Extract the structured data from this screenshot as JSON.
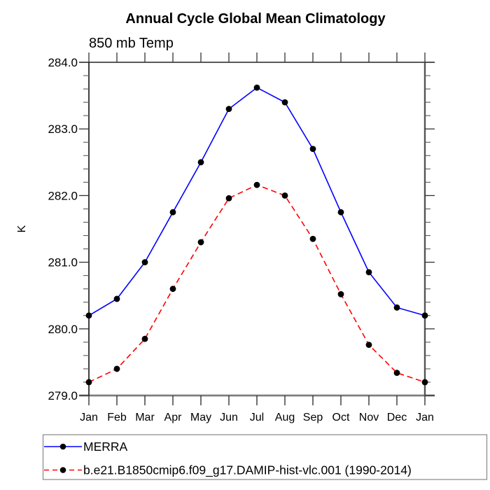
{
  "chart_data": {
    "type": "line",
    "title": "Annual Cycle Global Mean Climatology",
    "subtitle": "850 mb Temp",
    "xlabel": "",
    "ylabel": "K",
    "categories": [
      "Jan",
      "Feb",
      "Mar",
      "Apr",
      "May",
      "Jun",
      "Jul",
      "Aug",
      "Sep",
      "Oct",
      "Nov",
      "Dec",
      "Jan"
    ],
    "ylim": [
      279.0,
      284.0
    ],
    "ytick_interval": 1.0,
    "yminor_interval": 0.2,
    "ytick_labels": [
      "284.0",
      "283.0",
      "282.0",
      "281.0",
      "280.0",
      "279.0"
    ],
    "grid": false,
    "legend_position": "bottom",
    "marker": "filled-circle",
    "marker_color": "#000000",
    "series": [
      {
        "name": "MERRA",
        "color": "#0000ff",
        "style": "solid",
        "values": [
          280.2,
          280.45,
          281.0,
          281.75,
          282.5,
          283.3,
          283.62,
          283.4,
          282.7,
          281.75,
          280.85,
          280.32,
          280.2
        ]
      },
      {
        "name": "b.e21.B1850cmip6.f09_g17.DAMIP-hist-vlc.001 (1990-2014)",
        "color": "#ff0000",
        "style": "dashed",
        "values": [
          279.2,
          279.4,
          279.85,
          280.6,
          281.3,
          281.96,
          282.16,
          282.0,
          281.35,
          280.52,
          279.76,
          279.34,
          279.2
        ]
      }
    ]
  },
  "colors": {
    "merra_line": "#0000ff",
    "model_line": "#ff0000",
    "marker": "#000000",
    "frame": "#000000",
    "background": "#ffffff"
  }
}
